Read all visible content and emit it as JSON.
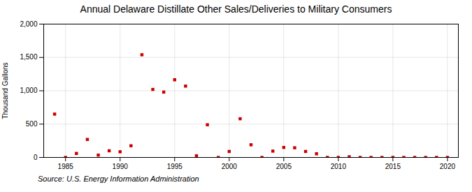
{
  "chart_data": {
    "type": "scatter",
    "title": "Annual Delaware Distillate Other Sales/Deliveries to Military Consumers",
    "ylabel": "Thousand Gallons",
    "source": "Source: U.S. Energy Information Administration",
    "x": [
      1984,
      1985,
      1986,
      1987,
      1988,
      1989,
      1990,
      1991,
      1992,
      1993,
      1994,
      1995,
      1996,
      1997,
      1998,
      1999,
      2000,
      2001,
      2002,
      2003,
      2004,
      2005,
      2006,
      2007,
      2008,
      2009,
      2010,
      2011,
      2012,
      2013,
      2014,
      2015,
      2016,
      2017,
      2018,
      2019,
      2020
    ],
    "values": [
      650,
      0,
      60,
      270,
      35,
      100,
      85,
      175,
      1540,
      1020,
      980,
      1165,
      1070,
      25,
      490,
      0,
      90,
      580,
      190,
      0,
      95,
      150,
      145,
      90,
      55,
      0,
      0,
      10,
      0,
      0,
      0,
      0,
      0,
      0,
      0,
      0,
      0
    ],
    "color": "#cc0000",
    "marker": "square",
    "xlim": [
      1983,
      2021
    ],
    "xticks": [
      1985,
      1990,
      1995,
      2000,
      2005,
      2010,
      2015,
      2020
    ],
    "ylim": [
      0,
      2000
    ],
    "yticks": [
      0,
      500,
      {
        "value": 1000,
        "label": "1,000"
      },
      {
        "value": 1500,
        "label": "1,500"
      },
      {
        "value": 2000,
        "label": "2,000"
      }
    ],
    "grid": true
  }
}
